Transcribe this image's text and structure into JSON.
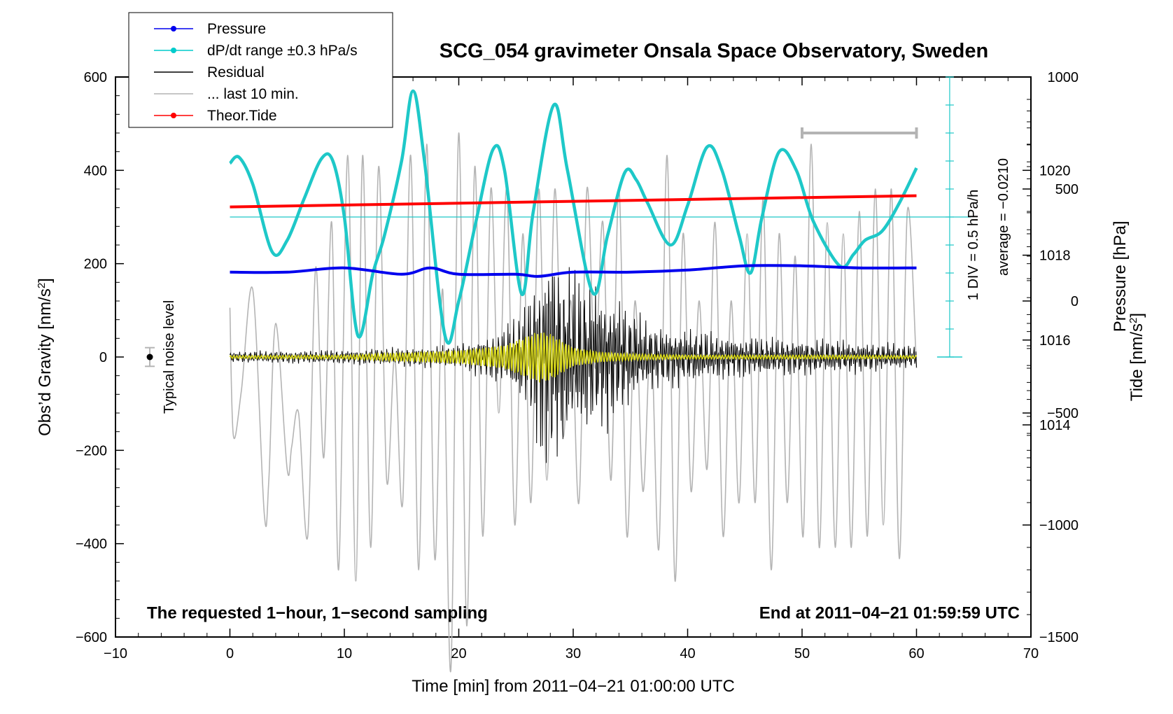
{
  "chart_data": {
    "type": "line",
    "title": "SCG_054 gravimeter Onsala Space Observatory, Sweden",
    "xlabel": "Time [min] from 2011−04−21 01:00:00 UTC",
    "ylabel": "Obs’d Gravity [nm/s²]",
    "ylabel_parts": {
      "main": "Obs’d Gravity [nm/s",
      "sup": "2",
      "tail": "]"
    },
    "xlim": [
      -10,
      70
    ],
    "ylim": [
      -600,
      600
    ],
    "x_ticks": [
      -10,
      0,
      10,
      20,
      30,
      40,
      50,
      60,
      70
    ],
    "x_tick_labels": [
      "−10",
      "0",
      "10",
      "20",
      "30",
      "40",
      "50",
      "60",
      "70"
    ],
    "y_ticks": [
      -600,
      -400,
      -200,
      0,
      200,
      400,
      600
    ],
    "y_tick_labels": [
      "−600",
      "−400",
      "−200",
      "0",
      "200",
      "400",
      "600"
    ],
    "pressure_axis": {
      "label": "Pressure [hPa]",
      "ticks": [
        1014,
        1016,
        1018,
        1020
      ],
      "tick_labels": [
        "1014",
        "1016",
        "1018",
        "1020"
      ],
      "range_hpa": [
        1009,
        1022.2
      ]
    },
    "tide_axis": {
      "label_parts": {
        "main": "Tide [nm/s",
        "sup": "2",
        "tail": "]"
      },
      "ticks": [
        -1500,
        -1000,
        -500,
        0,
        500,
        1000
      ],
      "tick_labels": [
        "−1500",
        "−1000",
        "−500",
        "0",
        "500",
        "1000"
      ],
      "range": [
        -1500,
        1000
      ]
    },
    "dpdt_scale": {
      "label1": "1 DIV = 0.5 hPa/h",
      "label2": "average = −0.0210",
      "x_min": 62.9,
      "y_top_gravity": 600,
      "y_bottom_gravity": 0,
      "baseline_gravity": 300
    },
    "legend": [
      {
        "label": "Pressure",
        "color": "#0000ee",
        "marker": true
      },
      {
        "label": "dP/dt range ±0.3 hPa/s",
        "color": "#00cccc",
        "marker": true
      },
      {
        "label": "Residual",
        "color": "#000000",
        "marker": false
      },
      {
        "label": "... last 10 min.",
        "color": "#b4b4b4",
        "marker": false
      },
      {
        "label": "Theor.Tide",
        "color": "#ff0000",
        "marker": true
      }
    ],
    "annotations": {
      "left_bottom": "The requested 1−hour, 1−second sampling",
      "right_bottom": "End at 2011−04−21 01:59:59 UTC",
      "noise_label": "Typical noise level",
      "noise_bar": {
        "x": -7,
        "center": 0,
        "half_range": 20
      },
      "last10_bar": {
        "x_start": 50,
        "x_end": 60,
        "tide_value": 750
      }
    },
    "series": [
      {
        "name": "Pressure",
        "color": "#0000ee",
        "unit": "hPa",
        "x": [
          0,
          5,
          10,
          15,
          17.5,
          20,
          25,
          27,
          30,
          35,
          40,
          45,
          50,
          55,
          60
        ],
        "values": [
          1017.6,
          1017.6,
          1017.7,
          1017.55,
          1017.7,
          1017.55,
          1017.55,
          1017.5,
          1017.6,
          1017.6,
          1017.65,
          1017.75,
          1017.75,
          1017.7,
          1017.7
        ]
      },
      {
        "name": "dP/dt range ±0.3 hPa/s",
        "color": "#00cccc",
        "unit": "nm/s²-equivalent on gravity axis",
        "x": [
          0,
          0.8,
          2,
          3.7,
          5,
          6.5,
          8,
          9,
          10,
          11.2,
          12.5,
          13.5,
          15,
          16,
          17,
          18.8,
          20,
          21.5,
          23,
          24,
          25.5,
          26.5,
          28.3,
          29.5,
          31.7,
          33,
          34.5,
          35.5,
          36.5,
          38.5,
          40,
          41.7,
          43,
          44.5,
          45.5,
          46.5,
          48,
          49.5,
          51,
          53.3,
          54.5,
          55.5,
          57,
          58.5,
          60
        ],
        "values": [
          415,
          428,
          370,
          225,
          250,
          340,
          425,
          420,
          300,
          45,
          180,
          260,
          420,
          570,
          420,
          45,
          120,
          290,
          445,
          400,
          135,
          310,
          540,
          400,
          138,
          260,
          395,
          380,
          330,
          240,
          325,
          450,
          400,
          260,
          180,
          300,
          440,
          400,
          290,
          195,
          220,
          250,
          270,
          330,
          405
        ]
      },
      {
        "name": "Residual",
        "color": "#000000",
        "unit": "nm/s²",
        "envelope_x": [
          0,
          10,
          20,
          24,
          26,
          27,
          28,
          29,
          30,
          32,
          34,
          36,
          38,
          40,
          44,
          48,
          54,
          60
        ],
        "envelope": [
          12,
          15,
          25,
          60,
          120,
          200,
          250,
          200,
          180,
          160,
          130,
          80,
          65,
          60,
          45,
          40,
          35,
          25
        ],
        "yellow_envelope": [
          3,
          4,
          14,
          25,
          45,
          55,
          50,
          35,
          20,
          12,
          8,
          6,
          5,
          4,
          4,
          4,
          4,
          3
        ]
      },
      {
        "name": "Theor.Tide",
        "color": "#ff0000",
        "unit": "nm/s² (tide axis)",
        "x": [
          0,
          60
        ],
        "values": [
          420,
          470
        ]
      },
      {
        "name": "... last 10 min.",
        "color": "#b4b4b4",
        "unit": "nm/s² (tide axis)",
        "x": [
          0,
          0.3,
          1.0,
          2.0,
          3.0,
          3.4,
          4.0,
          5.0,
          5.4,
          6.0,
          6.8,
          7.5,
          8.2,
          8.9,
          9.5,
          10.3,
          11.0,
          11.6,
          12.3,
          13.0,
          13.7,
          14.4,
          15.1,
          15.8,
          16.5,
          17.2,
          17.9,
          18.6,
          19.3,
          20.0,
          20.7,
          21.4,
          22.1,
          22.8,
          23.5,
          24.2,
          24.9,
          25.6,
          26.3,
          27.0,
          27.7,
          28.4,
          29.1,
          29.8,
          30.5,
          31.2,
          31.9,
          32.6,
          33.3,
          34.0,
          34.7,
          35.4,
          36.1,
          36.8,
          37.5,
          38.2,
          38.9,
          39.6,
          40.3,
          41.0,
          41.7,
          42.4,
          43.1,
          43.8,
          44.5,
          45.2,
          45.9,
          46.6,
          47.3,
          48.0,
          48.7,
          49.4,
          50.1,
          50.8,
          51.5,
          52.2,
          52.9,
          53.6,
          54.3,
          55.0,
          55.7,
          56.4,
          57.1,
          57.8,
          58.5,
          59.2,
          60
        ],
        "values": [
          -30,
          -600,
          -400,
          50,
          -950,
          -800,
          -100,
          -750,
          -650,
          -500,
          -1050,
          150,
          -700,
          350,
          -1200,
          650,
          -1250,
          650,
          -1100,
          600,
          -800,
          -250,
          -900,
          650,
          -1200,
          700,
          -1150,
          50,
          -1650,
          750,
          -1450,
          600,
          -1050,
          500,
          -500,
          500,
          -1000,
          300,
          -900,
          500,
          -800,
          500,
          -600,
          0,
          -900,
          500,
          -300,
          350,
          -800,
          500,
          -1050,
          0,
          -850,
          -150,
          -1100,
          650,
          -1250,
          300,
          -850,
          0,
          -750,
          350,
          -1050,
          0,
          -900,
          300,
          -900,
          450,
          -1200,
          300,
          -900,
          200,
          -1050,
          700,
          -1100,
          350,
          -1100,
          300,
          -1100,
          400,
          -1050,
          500,
          -1000,
          500,
          -1150,
          400,
          -300
        ]
      }
    ]
  }
}
